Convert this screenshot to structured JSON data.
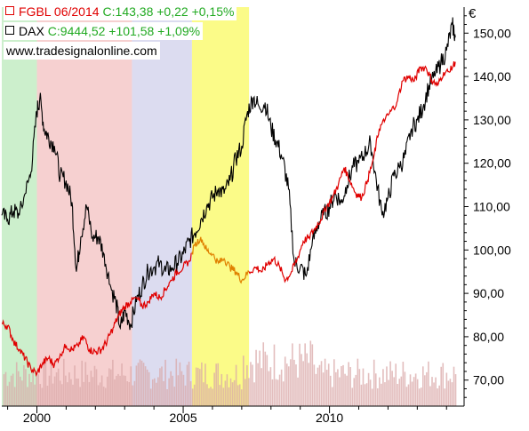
{
  "legend": {
    "fgbl": {
      "name": "FGBL 06/2014",
      "last": "C:143,38 +0,22 +0,15%",
      "color": "#e00000",
      "value_color": "#22aa22"
    },
    "dax": {
      "name": "DAX",
      "last": "C:9444,52 +101,58 +1,09%",
      "color": "#000000",
      "value_color": "#22aa22"
    }
  },
  "watermark": "www.tradesignalonline.com",
  "chart_data": {
    "type": "line",
    "currency_symbol": "€",
    "xlim": [
      1998.8,
      2014.6
    ],
    "ylim": [
      64,
      156
    ],
    "x_ticks": [
      2000,
      2005,
      2010
    ],
    "y_ticks": [
      70,
      80,
      90,
      100,
      110,
      120,
      130,
      140,
      150
    ],
    "y_tick_labels": [
      "70,00",
      "80,00",
      "90,00",
      "100,00",
      "110,00",
      "120,00",
      "130,00",
      "140,00",
      "150,00"
    ],
    "regions": [
      {
        "from": 1998.8,
        "to": 2000.0,
        "color": "#ccefcc"
      },
      {
        "from": 2000.0,
        "to": 2003.25,
        "color": "#f6d0d0"
      },
      {
        "from": 2003.25,
        "to": 2005.3,
        "color": "#dcdcf0"
      },
      {
        "from": 2005.3,
        "to": 2007.25,
        "color": "#fbfb88"
      }
    ],
    "series": [
      {
        "name": "FGBL 06/2014",
        "color": "#e00000",
        "highlight_color": "#e08000",
        "highlight_range": [
          2005.3,
          2007.25
        ],
        "points": [
          [
            1998.8,
            83
          ],
          [
            1999.0,
            82.5
          ],
          [
            1999.2,
            79
          ],
          [
            1999.4,
            77
          ],
          [
            1999.6,
            75
          ],
          [
            1999.8,
            72.5
          ],
          [
            2000.0,
            71.5
          ],
          [
            2000.2,
            74
          ],
          [
            2000.4,
            75
          ],
          [
            2000.6,
            73.5
          ],
          [
            2000.8,
            76
          ],
          [
            2001.0,
            78
          ],
          [
            2001.2,
            77
          ],
          [
            2001.4,
            78
          ],
          [
            2001.6,
            80
          ],
          [
            2001.8,
            77
          ],
          [
            2002.0,
            76.5
          ],
          [
            2002.2,
            77
          ],
          [
            2002.4,
            79
          ],
          [
            2002.6,
            82
          ],
          [
            2002.8,
            85
          ],
          [
            2003.0,
            87
          ],
          [
            2003.2,
            88
          ],
          [
            2003.4,
            89
          ],
          [
            2003.6,
            87
          ],
          [
            2003.8,
            88
          ],
          [
            2004.0,
            90
          ],
          [
            2004.2,
            89
          ],
          [
            2004.4,
            91
          ],
          [
            2004.6,
            93
          ],
          [
            2004.8,
            95
          ],
          [
            2005.0,
            96
          ],
          [
            2005.2,
            97.5
          ],
          [
            2005.4,
            101
          ],
          [
            2005.6,
            103
          ],
          [
            2005.8,
            100
          ],
          [
            2006.0,
            99
          ],
          [
            2006.2,
            97
          ],
          [
            2006.4,
            98
          ],
          [
            2006.6,
            96
          ],
          [
            2006.8,
            95
          ],
          [
            2007.0,
            93
          ],
          [
            2007.25,
            95
          ],
          [
            2007.5,
            96
          ],
          [
            2007.7,
            95
          ],
          [
            2007.9,
            97
          ],
          [
            2008.1,
            98
          ],
          [
            2008.3,
            96
          ],
          [
            2008.5,
            93
          ],
          [
            2008.7,
            95
          ],
          [
            2008.9,
            98
          ],
          [
            2009.1,
            102
          ],
          [
            2009.3,
            103
          ],
          [
            2009.5,
            105
          ],
          [
            2009.7,
            107
          ],
          [
            2009.9,
            110
          ],
          [
            2010.1,
            112
          ],
          [
            2010.3,
            115
          ],
          [
            2010.5,
            119
          ],
          [
            2010.7,
            116
          ],
          [
            2010.9,
            113
          ],
          [
            2011.1,
            112
          ],
          [
            2011.3,
            116
          ],
          [
            2011.5,
            121
          ],
          [
            2011.7,
            128
          ],
          [
            2011.9,
            130
          ],
          [
            2012.1,
            132
          ],
          [
            2012.3,
            134
          ],
          [
            2012.5,
            139
          ],
          [
            2012.7,
            140
          ],
          [
            2012.9,
            139
          ],
          [
            2013.1,
            142
          ],
          [
            2013.3,
            142
          ],
          [
            2013.5,
            139
          ],
          [
            2013.7,
            138
          ],
          [
            2013.9,
            141
          ],
          [
            2014.1,
            141
          ],
          [
            2014.3,
            143.38
          ]
        ]
      },
      {
        "name": "DAX",
        "color": "#000000",
        "points": [
          [
            1998.8,
            108
          ],
          [
            1999.0,
            107
          ],
          [
            1999.2,
            109
          ],
          [
            1999.4,
            108
          ],
          [
            1999.6,
            113
          ],
          [
            1999.8,
            118
          ],
          [
            2000.0,
            132
          ],
          [
            2000.1,
            135
          ],
          [
            2000.25,
            128
          ],
          [
            2000.4,
            126
          ],
          [
            2000.6,
            124
          ],
          [
            2000.8,
            117
          ],
          [
            2001.0,
            116
          ],
          [
            2001.2,
            111
          ],
          [
            2001.35,
            95
          ],
          [
            2001.5,
            103
          ],
          [
            2001.7,
            110
          ],
          [
            2001.9,
            103
          ],
          [
            2002.1,
            103
          ],
          [
            2002.3,
            99
          ],
          [
            2002.5,
            92
          ],
          [
            2002.7,
            88
          ],
          [
            2002.85,
            82
          ],
          [
            2003.0,
            86
          ],
          [
            2003.2,
            83
          ],
          [
            2003.4,
            88
          ],
          [
            2003.6,
            92
          ],
          [
            2003.8,
            95
          ],
          [
            2004.0,
            96
          ],
          [
            2004.2,
            97
          ],
          [
            2004.4,
            95
          ],
          [
            2004.6,
            96
          ],
          [
            2004.8,
            97
          ],
          [
            2005.0,
            99
          ],
          [
            2005.2,
            102
          ],
          [
            2005.4,
            104
          ],
          [
            2005.6,
            107
          ],
          [
            2005.8,
            110
          ],
          [
            2006.0,
            112
          ],
          [
            2006.2,
            114
          ],
          [
            2006.4,
            113
          ],
          [
            2006.6,
            116
          ],
          [
            2006.8,
            121
          ],
          [
            2007.0,
            124
          ],
          [
            2007.2,
            132
          ],
          [
            2007.4,
            135
          ],
          [
            2007.6,
            133
          ],
          [
            2007.8,
            134
          ],
          [
            2008.0,
            128
          ],
          [
            2008.2,
            125
          ],
          [
            2008.4,
            121
          ],
          [
            2008.6,
            114
          ],
          [
            2008.8,
            97
          ],
          [
            2009.0,
            96
          ],
          [
            2009.2,
            94
          ],
          [
            2009.4,
            101
          ],
          [
            2009.6,
            106
          ],
          [
            2009.8,
            108
          ],
          [
            2010.0,
            110
          ],
          [
            2010.2,
            113
          ],
          [
            2010.4,
            111
          ],
          [
            2010.6,
            115
          ],
          [
            2010.8,
            119
          ],
          [
            2011.0,
            120
          ],
          [
            2011.2,
            122
          ],
          [
            2011.4,
            125
          ],
          [
            2011.6,
            116
          ],
          [
            2011.8,
            108
          ],
          [
            2012.0,
            112
          ],
          [
            2012.2,
            117
          ],
          [
            2012.4,
            119
          ],
          [
            2012.6,
            122
          ],
          [
            2012.8,
            128
          ],
          [
            2013.0,
            130
          ],
          [
            2013.2,
            133
          ],
          [
            2013.4,
            138
          ],
          [
            2013.6,
            140
          ],
          [
            2013.8,
            143
          ],
          [
            2014.0,
            146
          ],
          [
            2014.2,
            152
          ],
          [
            2014.3,
            149
          ]
        ]
      }
    ],
    "volume": {
      "color": "#d9a8a8",
      "base": 64,
      "max_height": 11
    }
  }
}
